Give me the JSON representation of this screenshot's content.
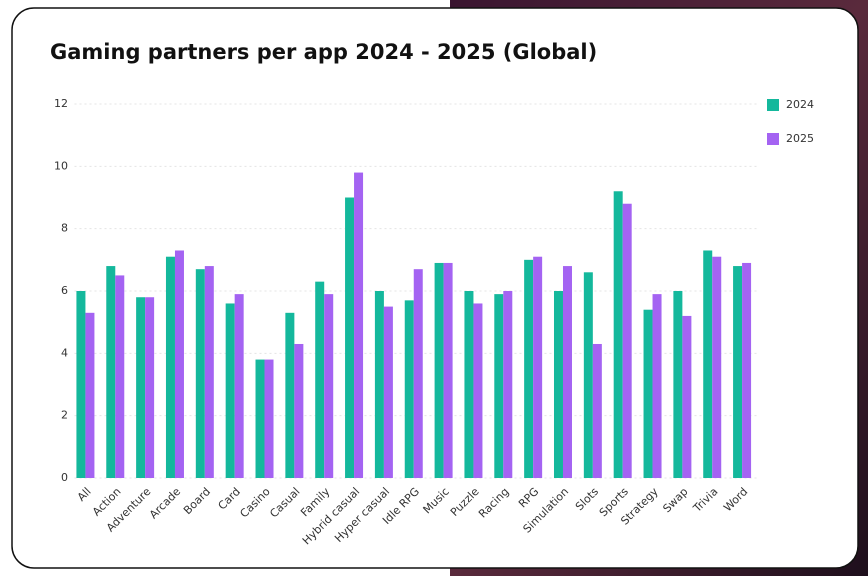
{
  "chart_data": {
    "type": "bar",
    "title": "Gaming partners per app 2024 - 2025 (Global)",
    "categories": [
      "All",
      "Action",
      "Adventure",
      "Arcade",
      "Board",
      "Card",
      "Casino",
      "Casual",
      "Family",
      "Hybrid casual",
      "Hyper casual",
      "Idle RPG",
      "Music",
      "Puzzle",
      "Racing",
      "RPG",
      "Simulation",
      "Slots",
      "Sports",
      "Strategy",
      "Swap",
      "Trivia",
      "Word"
    ],
    "series": [
      {
        "name": "2024",
        "color": "#14b89c",
        "values": [
          6.0,
          6.8,
          5.8,
          7.1,
          6.7,
          5.6,
          3.8,
          5.3,
          6.3,
          9.0,
          6.0,
          5.7,
          6.9,
          6.0,
          5.9,
          7.0,
          6.0,
          6.6,
          9.2,
          5.4,
          6.0,
          7.3,
          6.8
        ]
      },
      {
        "name": "2025",
        "color": "#a463f2",
        "values": [
          5.3,
          6.5,
          5.8,
          7.3,
          6.8,
          5.9,
          3.8,
          4.3,
          5.9,
          9.8,
          5.5,
          6.7,
          6.9,
          5.6,
          6.0,
          7.1,
          6.8,
          4.3,
          8.8,
          5.9,
          5.2,
          7.1,
          6.9
        ]
      }
    ],
    "ylim": [
      0,
      12
    ],
    "yticks": [
      0,
      2,
      4,
      6,
      8,
      10,
      12
    ],
    "grid": true,
    "legend": "right"
  }
}
